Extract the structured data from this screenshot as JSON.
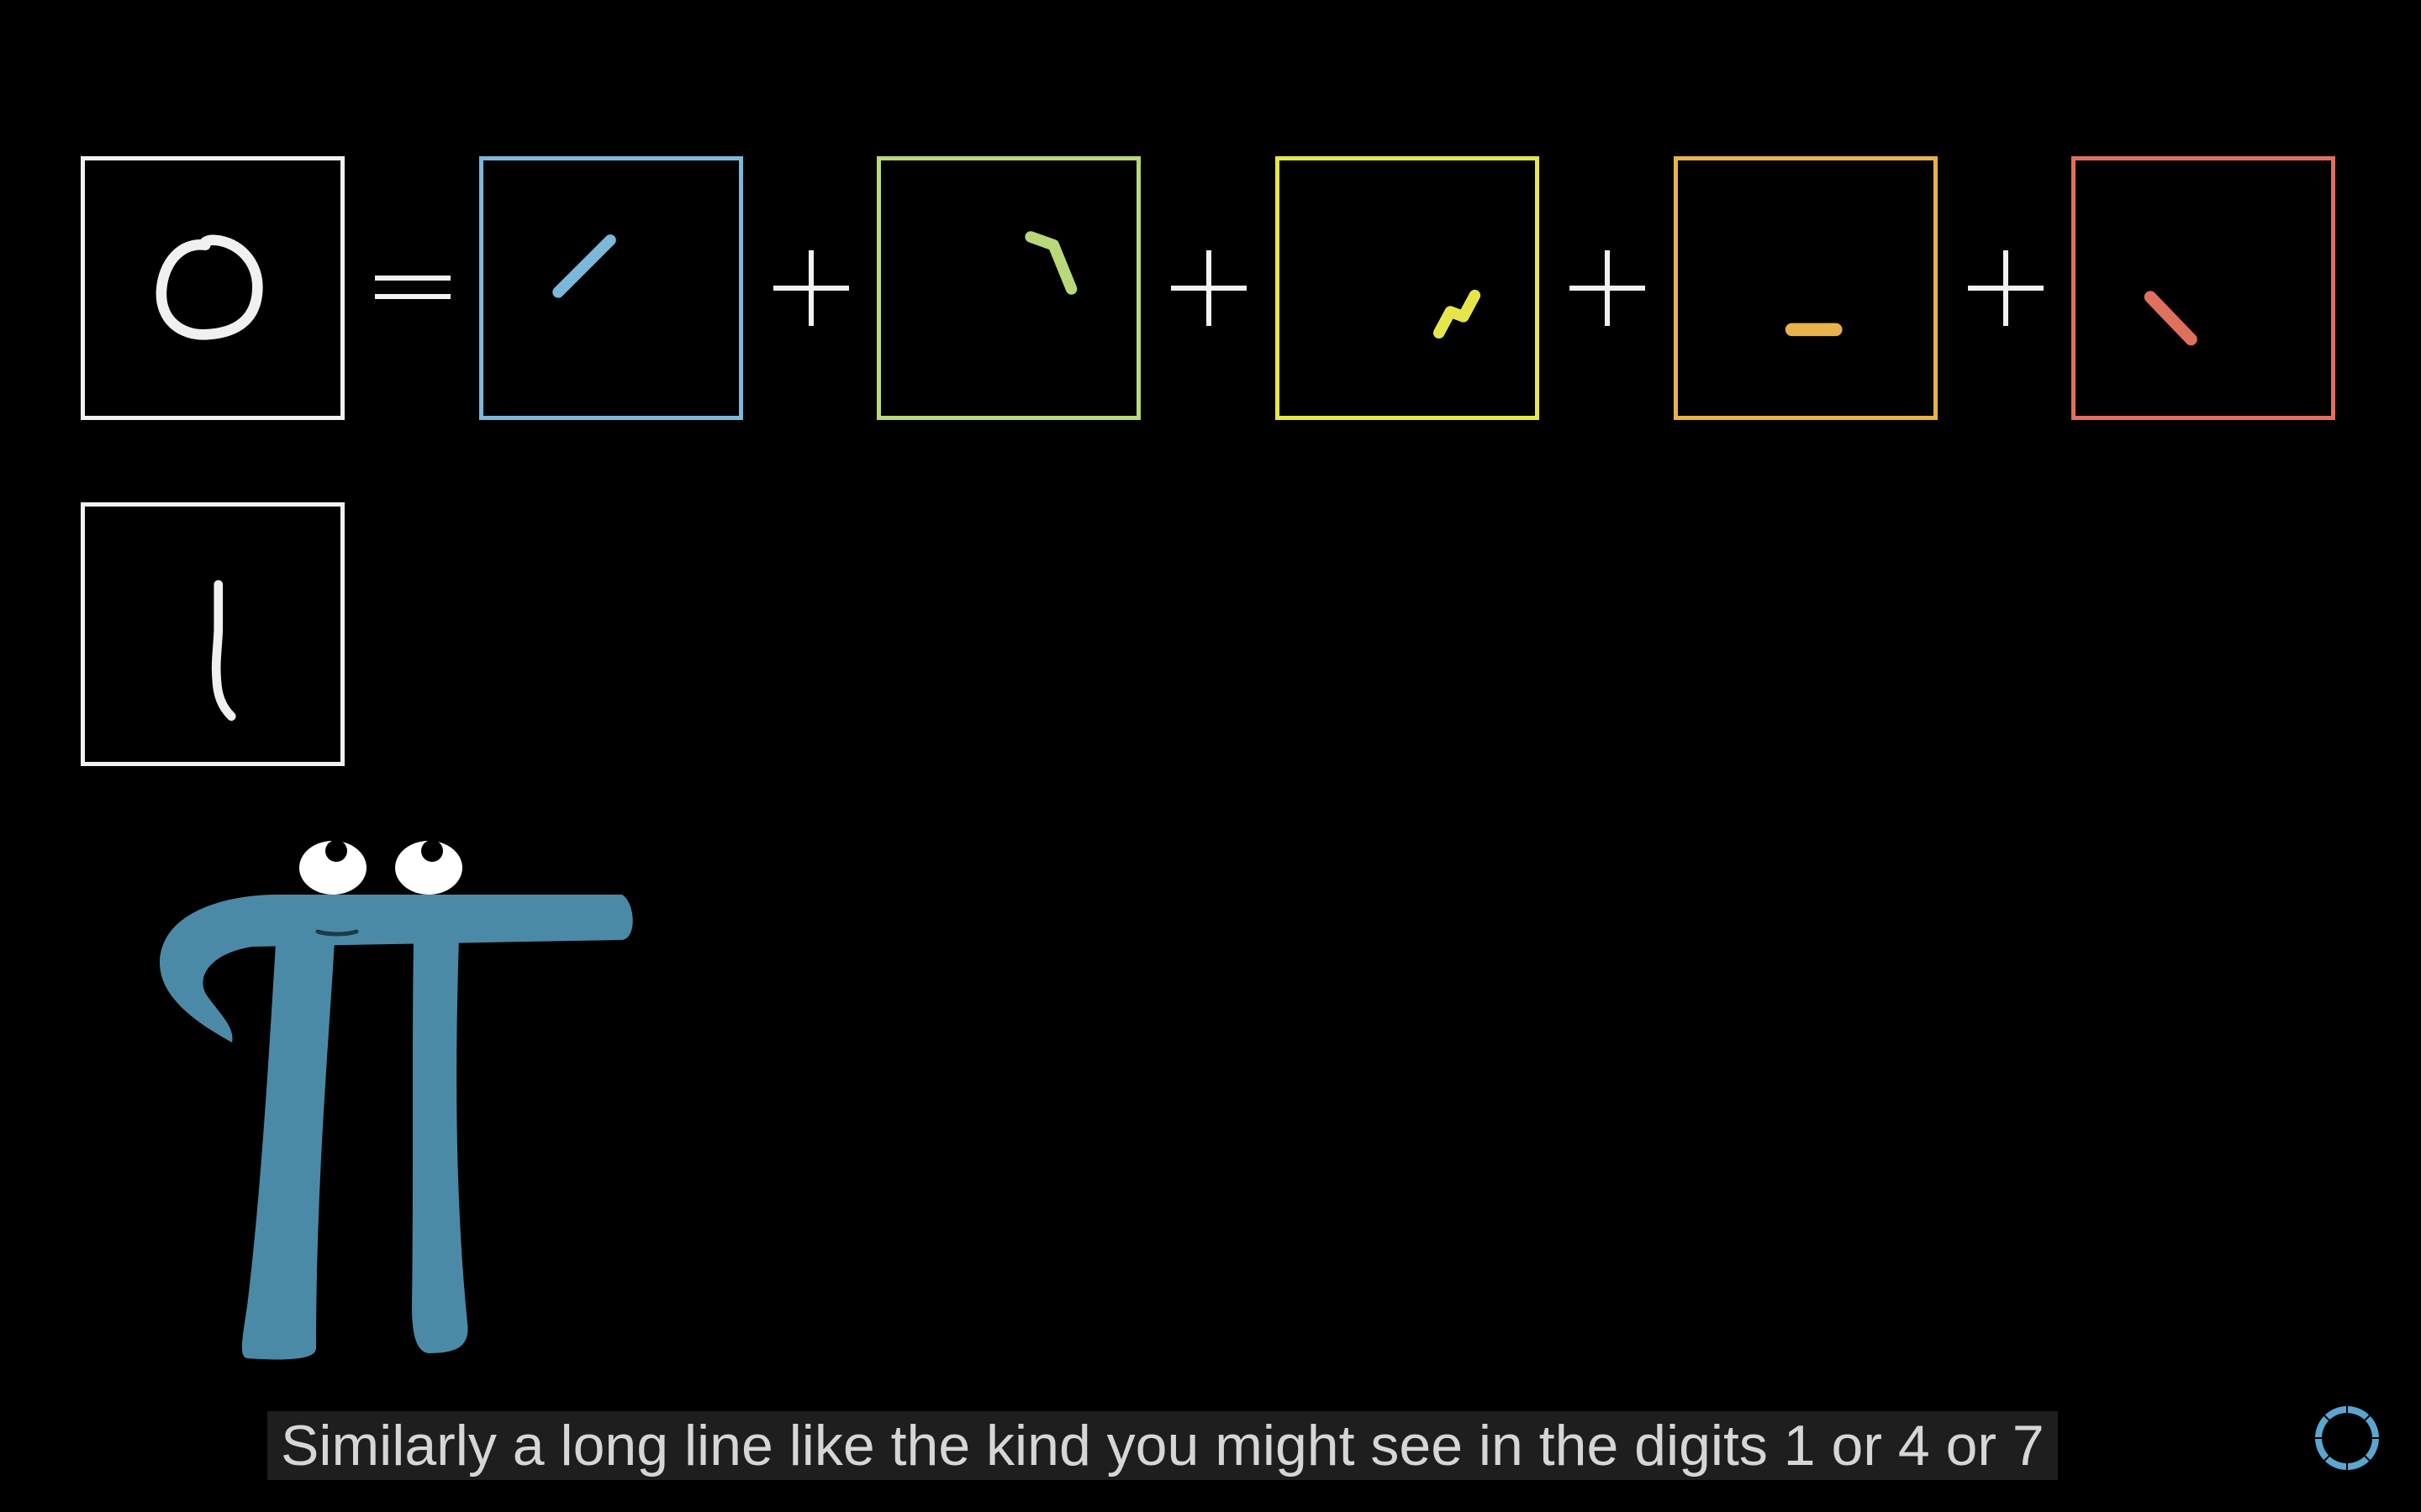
{
  "video": {
    "subtitle": "Similarly a long line like the kind you might see in the digits 1 or 4 or 7"
  },
  "equation": {
    "equals_symbol": "=",
    "plus_symbol": "+",
    "input_digit_icon": "handwritten-zero-icon",
    "second_digit_icon": "handwritten-one-icon",
    "components": [
      {
        "name": "top-left-edge",
        "color": "#7cb8d8"
      },
      {
        "name": "top-right-edge",
        "color": "#b8d87a"
      },
      {
        "name": "middle-right-edge",
        "color": "#e6e64a"
      },
      {
        "name": "bottom-edge",
        "color": "#e8b34a"
      },
      {
        "name": "bottom-left-edge",
        "color": "#e0705e"
      }
    ]
  },
  "colors": {
    "background": "#000000",
    "frame_white": "#f2f2f2",
    "pi_body": "#4a8aa6"
  },
  "character": {
    "icon": "pi-creature-icon"
  },
  "loading": {
    "icon": "loading-spinner-icon"
  }
}
